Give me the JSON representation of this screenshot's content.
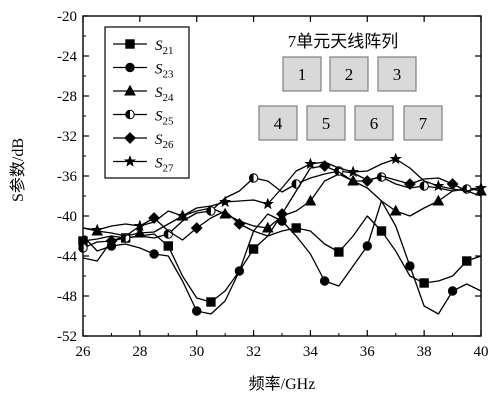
{
  "chart_data": {
    "type": "line",
    "xlabel": "频率/GHz",
    "ylabel": "S参数/dB",
    "xlim": [
      26,
      40
    ],
    "ylim": [
      -52,
      -20
    ],
    "xticks": [
      26,
      28,
      30,
      32,
      34,
      36,
      38,
      40
    ],
    "yticks": [
      -20,
      -24,
      -28,
      -32,
      -36,
      -40,
      -44,
      -48,
      -52
    ],
    "legend_position": "top-left",
    "grid": false,
    "series": [
      {
        "name": "S21",
        "base": "S",
        "sub": "21",
        "marker": "square",
        "x": [
          26,
          26.5,
          27,
          27.5,
          28,
          28.5,
          29,
          29.5,
          30,
          30.5,
          31,
          31.5,
          32,
          32.5,
          33,
          33.5,
          34,
          34.5,
          35,
          35.5,
          36,
          36.5,
          37,
          37.5,
          38,
          38.5,
          39,
          39.5,
          40
        ],
        "y": [
          -42.5,
          -42.3,
          -42,
          -42.2,
          -42,
          -41.8,
          -43,
          -46,
          -48.2,
          -48.6,
          -47.5,
          -45.5,
          -43.3,
          -42,
          -41.5,
          -41.2,
          -41.5,
          -42.8,
          -43.6,
          -42,
          -40,
          -41.5,
          -43.5,
          -46,
          -46.7,
          -46.5,
          -46,
          -44.5,
          -44
        ]
      },
      {
        "name": "S23",
        "base": "S",
        "sub": "23",
        "marker": "circle",
        "x": [
          26,
          26.5,
          27,
          27.5,
          28,
          28.5,
          29,
          29.5,
          30,
          30.5,
          31,
          31.5,
          32,
          32.5,
          33,
          33.5,
          34,
          34.5,
          35,
          35.5,
          36,
          36.5,
          37,
          37.5,
          38,
          38.5,
          39,
          39.5,
          40
        ],
        "y": [
          -42,
          -43.5,
          -43,
          -42.8,
          -43.2,
          -43.8,
          -44,
          -46.5,
          -49.5,
          -49.8,
          -48.5,
          -45.5,
          -41.5,
          -39.8,
          -40.5,
          -42,
          -43.8,
          -46.5,
          -47,
          -45,
          -43,
          -38.5,
          -41,
          -45,
          -49,
          -49.8,
          -47.5,
          -46.8,
          -47.5
        ]
      },
      {
        "name": "S24",
        "base": "S",
        "sub": "24",
        "marker": "triangle",
        "x": [
          26,
          26.5,
          27,
          27.5,
          28,
          28.5,
          29,
          29.5,
          30,
          30.5,
          31,
          31.5,
          32,
          32.5,
          33,
          33.5,
          34,
          34.5,
          35,
          35.5,
          36,
          36.5,
          37,
          37.5,
          38,
          38.5,
          39,
          39.5,
          40
        ],
        "y": [
          -41.2,
          -41.5,
          -41.7,
          -42,
          -41.7,
          -41.6,
          -40.8,
          -40,
          -39.5,
          -39.2,
          -39.8,
          -40.5,
          -41,
          -41.2,
          -40,
          -39.5,
          -38.5,
          -36.5,
          -35.8,
          -36.5,
          -37.2,
          -38.5,
          -39.5,
          -40,
          -39.2,
          -38.5,
          -37.5,
          -37.2,
          -37.5
        ]
      },
      {
        "name": "S25",
        "base": "S",
        "sub": "25",
        "marker": "half-circle",
        "x": [
          26,
          26.5,
          27,
          27.5,
          28,
          28.5,
          29,
          29.5,
          30,
          30.5,
          31,
          31.5,
          32,
          32.5,
          33,
          33.5,
          34,
          34.5,
          35,
          35.5,
          36,
          36.5,
          37,
          37.5,
          38,
          38.5,
          39,
          39.5,
          40
        ],
        "y": [
          -43.2,
          -42.6,
          -42.5,
          -42.2,
          -42,
          -42.2,
          -41.8,
          -40.5,
          -39.7,
          -39.5,
          -38.2,
          -37.5,
          -36.2,
          -36.5,
          -37.6,
          -36.8,
          -36.2,
          -35.8,
          -35.5,
          -35.7,
          -36.4,
          -36.1,
          -36.8,
          -37.2,
          -37,
          -37.2,
          -37.5,
          -37.3,
          -37.2
        ]
      },
      {
        "name": "S26",
        "base": "S",
        "sub": "26",
        "marker": "diamond",
        "x": [
          26,
          26.5,
          27,
          27.5,
          28,
          28.5,
          29,
          29.5,
          30,
          30.5,
          31,
          31.5,
          32,
          32.5,
          33,
          33.5,
          34,
          34.5,
          35,
          35.5,
          36,
          36.5,
          37,
          37.5,
          38,
          38.5,
          39,
          39.5,
          40
        ],
        "y": [
          -44.2,
          -44.5,
          -42.5,
          -42,
          -41,
          -40.2,
          -41.5,
          -42.4,
          -41.2,
          -40.2,
          -39.5,
          -40.8,
          -41.5,
          -42,
          -39.8,
          -37.5,
          -35.2,
          -35,
          -35.6,
          -36.5,
          -36.5,
          -36,
          -36.4,
          -36.8,
          -36.3,
          -36.2,
          -36.8,
          -37.5,
          -38
        ]
      },
      {
        "name": "S27",
        "base": "S",
        "sub": "27",
        "marker": "star",
        "x": [
          26,
          26.5,
          27,
          27.5,
          28,
          28.5,
          29,
          29.5,
          30,
          30.5,
          31,
          31.5,
          32,
          32.5,
          33,
          33.5,
          34,
          34.5,
          35,
          35.5,
          36,
          36.5,
          37,
          37.5,
          38,
          38.5,
          39,
          39.5,
          40
        ],
        "y": [
          -41.2,
          -41.4,
          -41,
          -40.8,
          -41,
          -40.6,
          -39.5,
          -40,
          -39.2,
          -39,
          -38.6,
          -38.5,
          -38.4,
          -38.8,
          -37.2,
          -35.5,
          -34.8,
          -34.6,
          -35.2,
          -35.6,
          -35.5,
          -34.8,
          -34.3,
          -35.2,
          -36.5,
          -37,
          -37.3,
          -37.5,
          -37.2
        ]
      }
    ],
    "inset": {
      "title": "7单元天线阵列",
      "elements_row1": [
        "1",
        "2",
        "3"
      ],
      "elements_row2": [
        "4",
        "5",
        "6",
        "7"
      ]
    }
  },
  "colors": {
    "line": "#000000",
    "element_fill": "#d9d9d9",
    "element_stroke": "#7f7f7f"
  }
}
